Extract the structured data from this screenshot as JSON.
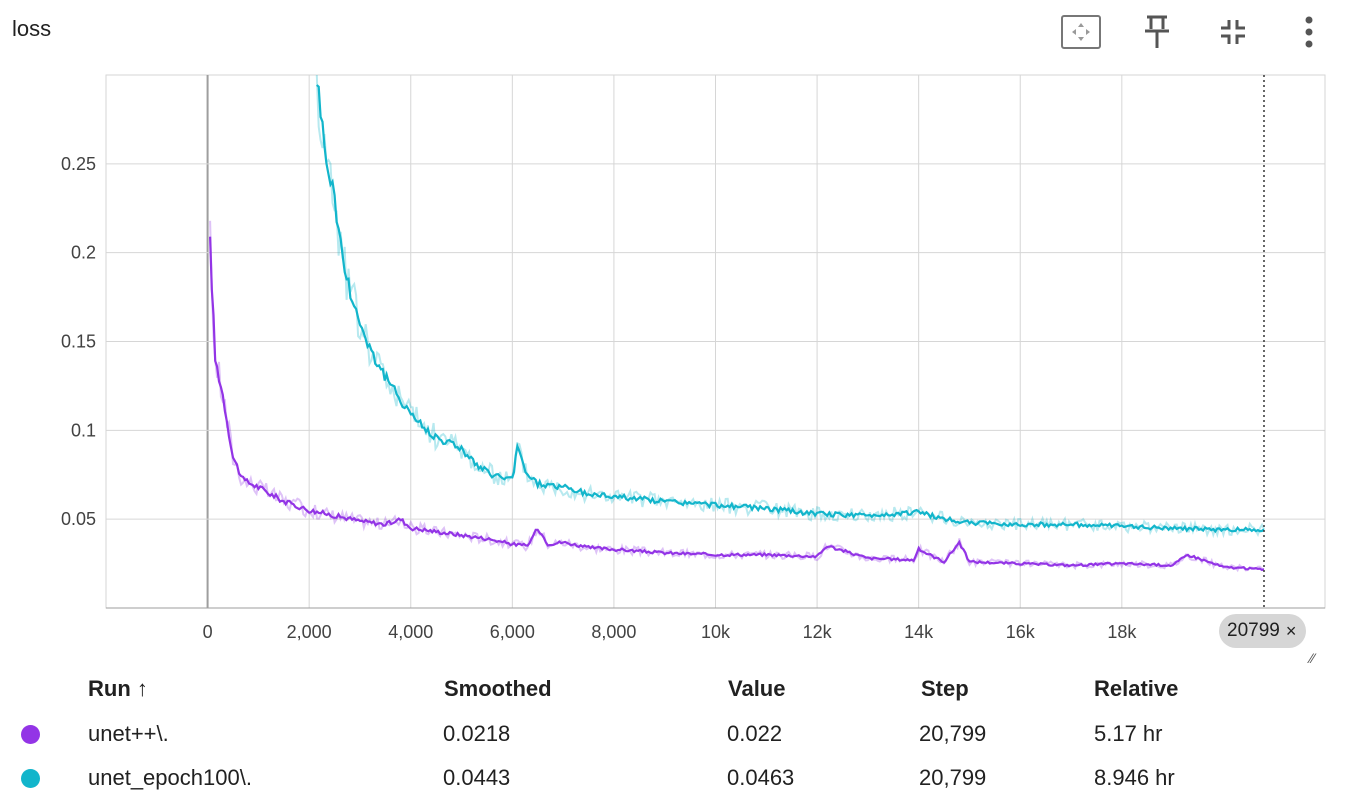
{
  "title": "loss",
  "toolbar": {
    "icons": [
      "fit-domain-icon",
      "pin-icon",
      "collapse-icon",
      "more-vert-icon"
    ]
  },
  "chart_data": {
    "type": "line",
    "title": "loss",
    "xlabel": "",
    "ylabel": "",
    "xlim": [
      -2000,
      22000
    ],
    "ylim": [
      0,
      0.3
    ],
    "x_ticks": [
      {
        "value": 0,
        "label": "0"
      },
      {
        "value": 2000,
        "label": "2,000"
      },
      {
        "value": 4000,
        "label": "4,000"
      },
      {
        "value": 6000,
        "label": "6,000"
      },
      {
        "value": 8000,
        "label": "8,000"
      },
      {
        "value": 10000,
        "label": "10k"
      },
      {
        "value": 12000,
        "label": "12k"
      },
      {
        "value": 14000,
        "label": "14k"
      },
      {
        "value": 16000,
        "label": "16k"
      },
      {
        "value": 18000,
        "label": "18k"
      }
    ],
    "y_ticks": [
      {
        "value": 0.05,
        "label": "0.05"
      },
      {
        "value": 0.1,
        "label": "0.1"
      },
      {
        "value": 0.15,
        "label": "0.15"
      },
      {
        "value": 0.2,
        "label": "0.2"
      },
      {
        "value": 0.25,
        "label": "0.25"
      }
    ],
    "grid": true,
    "series": [
      {
        "name": "unet++\\.",
        "color": "#9334e6",
        "x": [
          50,
          150,
          300,
          500,
          700,
          1000,
          1500,
          2000,
          2500,
          3000,
          3500,
          3800,
          4000,
          4500,
          5000,
          5500,
          6000,
          6300,
          6500,
          6700,
          7000,
          7500,
          8000,
          9000,
          10000,
          11000,
          12000,
          12200,
          13000,
          13900,
          14000,
          14500,
          14800,
          15000,
          16000,
          17000,
          18000,
          19000,
          19300,
          19500,
          20000,
          20799
        ],
        "y": [
          0.205,
          0.14,
          0.12,
          0.085,
          0.072,
          0.068,
          0.06,
          0.055,
          0.052,
          0.049,
          0.047,
          0.05,
          0.045,
          0.043,
          0.041,
          0.039,
          0.036,
          0.035,
          0.045,
          0.036,
          0.037,
          0.034,
          0.033,
          0.031,
          0.03,
          0.03,
          0.029,
          0.035,
          0.028,
          0.027,
          0.033,
          0.026,
          0.037,
          0.026,
          0.025,
          0.024,
          0.025,
          0.024,
          0.03,
          0.028,
          0.023,
          0.0218
        ]
      },
      {
        "name": "unet_epoch100\\.",
        "color": "#12b5cb",
        "x": [
          2150,
          2300,
          2500,
          2700,
          3000,
          3300,
          3600,
          4000,
          4300,
          4600,
          5000,
          5300,
          5600,
          6000,
          6100,
          6300,
          6500,
          7000,
          7500,
          8000,
          9000,
          10000,
          11000,
          12000,
          13000,
          14000,
          14500,
          15000,
          16000,
          17000,
          18000,
          19000,
          20000,
          20799
        ],
        "y": [
          0.3,
          0.26,
          0.23,
          0.19,
          0.16,
          0.14,
          0.125,
          0.11,
          0.1,
          0.095,
          0.09,
          0.08,
          0.075,
          0.072,
          0.09,
          0.075,
          0.07,
          0.068,
          0.064,
          0.063,
          0.06,
          0.058,
          0.056,
          0.053,
          0.052,
          0.054,
          0.05,
          0.048,
          0.047,
          0.047,
          0.046,
          0.045,
          0.044,
          0.0443
        ]
      }
    ],
    "hover_step": 20799
  },
  "hover_chip": {
    "label": "20799",
    "close": "×"
  },
  "legend": {
    "headers": {
      "run": "Run ↑",
      "smoothed": "Smoothed",
      "value": "Value",
      "step": "Step",
      "relative": "Relative"
    },
    "rows": [
      {
        "run": "unet++\\.",
        "smoothed": "0.0218",
        "value": "0.022",
        "step": "20,799",
        "relative": "5.17 hr",
        "color": "#9334e6"
      },
      {
        "run": "unet_epoch100\\.",
        "smoothed": "0.0443",
        "value": "0.0463",
        "step": "20,799",
        "relative": "8.946 hr",
        "color": "#12b5cb"
      }
    ]
  }
}
